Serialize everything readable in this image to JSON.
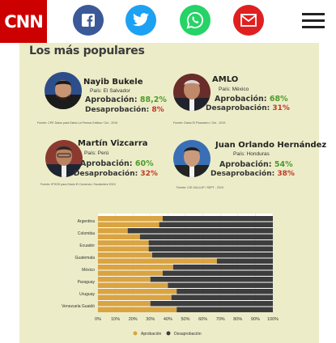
{
  "header": {
    "logo_text": "CNN",
    "share_icons": [
      {
        "name": "facebook-icon",
        "glyph": "f",
        "color": "#3b5998"
      },
      {
        "name": "twitter-icon",
        "glyph": "",
        "color": "#1da1f2"
      },
      {
        "name": "whatsapp-icon",
        "glyph": "",
        "color": "#25d366"
      },
      {
        "name": "email-icon",
        "glyph": "",
        "color": "#e02020"
      }
    ],
    "menu_icon": "hamburger-icon"
  },
  "infographic": {
    "title": "Los más populares",
    "leaders": [
      {
        "name": "Nayib Bukele",
        "country": "País: El Salvador",
        "approval_label": "Aprobación:",
        "approval": "88,2%",
        "disapproval_label": "Desaprobación:",
        "disapproval": "8%",
        "source": "Fuente: CPE Datos para Diario La Prensa Gráfica / Oct - 2019"
      },
      {
        "name": "AMLO",
        "country": "País: México",
        "approval_label": "Aprobación:",
        "approval": "68%",
        "disapproval_label": "Desaprobación:",
        "disapproval": "31%",
        "source": "Fuente: Diario El Financiero / Oct - 2019"
      },
      {
        "name": "Martín Vizcarra",
        "country": "País: Perú",
        "approval_label": "Aprobación:",
        "approval": "60%",
        "disapproval_label": "Desaprobación:",
        "disapproval": "32%",
        "source": "Fuente: IPSOS para Diario El Comercio / Noviembre 2019"
      },
      {
        "name": "Juan Orlando Hernández",
        "country": "País: Honduras",
        "approval_label": "Aprobación:",
        "approval": "54%",
        "disapproval_label": "Desaprobación:",
        "disapproval": "38%",
        "source": "Fuente: CID GALLUP / SEPT - 2019"
      }
    ],
    "colors": {
      "approval": "#d9a441",
      "disapproval": "#3d3d3d",
      "approval_text": "#4e9a2c",
      "disapproval_text": "#c0392b"
    }
  },
  "chart_data": {
    "type": "bar",
    "orientation": "horizontal",
    "stacked": true,
    "categories": [
      "Argentina",
      "Colombia",
      "Ecuador",
      "Guatemala",
      "México",
      "Paraguay",
      "Uruguay",
      "Venezuela Guaidó"
    ],
    "series": [
      {
        "name": "Aprobación",
        "values": [
          [
            37,
            35
          ],
          [
            17,
            24
          ],
          [
            29,
            29
          ],
          [
            31,
            68
          ],
          [
            43,
            37
          ],
          [
            30,
            40
          ],
          [
            45,
            42
          ],
          [
            30,
            45
          ]
        ]
      },
      {
        "name": "Desaprobación",
        "values": [
          [
            63,
            65
          ],
          [
            83,
            76
          ],
          [
            71,
            71
          ],
          [
            69,
            32
          ],
          [
            57,
            63
          ],
          [
            70,
            60
          ],
          [
            55,
            58
          ],
          [
            70,
            55
          ]
        ]
      }
    ],
    "xticks": [
      "0%",
      "10%",
      "20%",
      "30%",
      "40%",
      "50%",
      "60%",
      "70%",
      "80%",
      "90%",
      "100%"
    ],
    "xlim": [
      0,
      100
    ],
    "legend": {
      "position": "bottom",
      "items": [
        "Aprobación",
        "Desaprobación"
      ]
    }
  }
}
